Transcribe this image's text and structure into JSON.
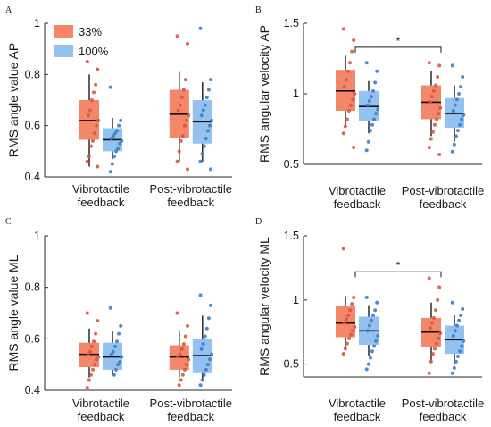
{
  "colors": {
    "c33": "#f4866a",
    "c100": "#94c2f0",
    "dot33": "#d45a3e",
    "dot100": "#3e7ec6"
  },
  "chart_data": [
    {
      "panel": "A",
      "type": "box",
      "ylabel": "RMS angle value AP",
      "ylim": [
        0.4,
        1.0
      ],
      "yticks": [
        "0.4",
        "0.6",
        "0.8",
        "1"
      ],
      "legend": {
        "placement": "top-left",
        "entries": [
          "33%",
          "100%"
        ]
      },
      "categories": [
        "Vibrotactile\nfeedback",
        "Post-vibrotactile\nfeedback"
      ],
      "significance": null,
      "series": [
        {
          "name": "33%",
          "boxes": [
            {
              "min": 0.44,
              "q1": 0.545,
              "median": 0.62,
              "q3": 0.7,
              "max": 0.8,
              "points": [
                0.85,
                0.82,
                0.76,
                0.73,
                0.7,
                0.66,
                0.64,
                0.62,
                0.6,
                0.57,
                0.54,
                0.52,
                0.48,
                0.46,
                0.44
              ]
            },
            {
              "min": 0.46,
              "q1": 0.55,
              "median": 0.645,
              "q3": 0.74,
              "max": 0.81,
              "points": [
                0.95,
                0.92,
                0.78,
                0.74,
                0.71,
                0.68,
                0.66,
                0.64,
                0.62,
                0.6,
                0.56,
                0.54,
                0.5,
                0.46,
                0.43
              ]
            }
          ]
        },
        {
          "name": "100%",
          "boxes": [
            {
              "min": 0.47,
              "q1": 0.5,
              "median": 0.545,
              "q3": 0.59,
              "max": 0.63,
              "points": [
                0.75,
                0.62,
                0.6,
                0.58,
                0.57,
                0.56,
                0.55,
                0.54,
                0.53,
                0.51,
                0.5,
                0.48,
                0.45,
                0.42
              ]
            },
            {
              "min": 0.46,
              "q1": 0.53,
              "median": 0.615,
              "q3": 0.7,
              "max": 0.77,
              "points": [
                0.98,
                0.78,
                0.74,
                0.71,
                0.68,
                0.66,
                0.64,
                0.62,
                0.6,
                0.58,
                0.55,
                0.52,
                0.49,
                0.46,
                0.43
              ]
            }
          ]
        }
      ]
    },
    {
      "panel": "B",
      "type": "box",
      "ylabel": "RMS angular velocity AP",
      "ylim": [
        0.5,
        1.5
      ],
      "yticks": [
        "0.5",
        "1",
        "1.5"
      ],
      "legend": null,
      "categories": [
        "Vibrotactile\nfeedback",
        "Post-vibrotactile\nfeedback"
      ],
      "significance": {
        "label": "*",
        "from": 0,
        "to": 1,
        "y": 1.33
      },
      "series": [
        {
          "name": "33%",
          "boxes": [
            {
              "min": 0.78,
              "q1": 0.88,
              "median": 1.02,
              "q3": 1.17,
              "max": 1.27,
              "points": [
                1.46,
                1.38,
                1.3,
                1.22,
                1.16,
                1.1,
                1.05,
                1.0,
                0.96,
                0.92,
                0.88,
                0.82,
                0.77,
                0.72,
                0.62
              ]
            },
            {
              "min": 0.7,
              "q1": 0.82,
              "median": 0.94,
              "q3": 1.06,
              "max": 1.16,
              "points": [
                1.22,
                1.2,
                1.12,
                1.06,
                1.02,
                0.98,
                0.94,
                0.9,
                0.86,
                0.82,
                0.78,
                0.73,
                0.68,
                0.62,
                0.57
              ]
            }
          ]
        },
        {
          "name": "100%",
          "boxes": [
            {
              "min": 0.72,
              "q1": 0.81,
              "median": 0.91,
              "q3": 1.02,
              "max": 1.09,
              "points": [
                1.22,
                1.16,
                1.08,
                1.02,
                0.98,
                0.95,
                0.92,
                0.89,
                0.86,
                0.82,
                0.78,
                0.74,
                0.66,
                0.6
              ]
            },
            {
              "min": 0.66,
              "q1": 0.76,
              "median": 0.86,
              "q3": 0.97,
              "max": 1.06,
              "points": [
                1.2,
                1.12,
                1.05,
                1.0,
                0.96,
                0.92,
                0.88,
                0.85,
                0.82,
                0.78,
                0.74,
                0.7,
                0.64,
                0.59
              ]
            }
          ]
        }
      ]
    },
    {
      "panel": "C",
      "type": "box",
      "ylabel": "RMS angle value ML",
      "ylim": [
        0.4,
        1.0
      ],
      "yticks": [
        "0.4",
        "0.6",
        "0.8",
        "1"
      ],
      "legend": null,
      "categories": [
        "Vibrotactile\nfeedback",
        "Post-vibrotactile\nfeedback"
      ],
      "significance": null,
      "series": [
        {
          "name": "33%",
          "boxes": [
            {
              "min": 0.45,
              "q1": 0.49,
              "median": 0.54,
              "q3": 0.585,
              "max": 0.64,
              "points": [
                0.7,
                0.67,
                0.62,
                0.59,
                0.57,
                0.55,
                0.54,
                0.53,
                0.52,
                0.5,
                0.48,
                0.46,
                0.44,
                0.41
              ]
            },
            {
              "min": 0.45,
              "q1": 0.48,
              "median": 0.53,
              "q3": 0.575,
              "max": 0.63,
              "points": [
                0.7,
                0.65,
                0.61,
                0.58,
                0.56,
                0.54,
                0.53,
                0.52,
                0.5,
                0.48,
                0.46,
                0.44,
                0.42
              ]
            }
          ]
        },
        {
          "name": "100%",
          "boxes": [
            {
              "min": 0.46,
              "q1": 0.48,
              "median": 0.53,
              "q3": 0.585,
              "max": 0.63,
              "points": [
                0.72,
                0.65,
                0.62,
                0.59,
                0.57,
                0.55,
                0.54,
                0.53,
                0.51,
                0.5,
                0.48,
                0.46
              ]
            },
            {
              "min": 0.44,
              "q1": 0.47,
              "median": 0.535,
              "q3": 0.6,
              "max": 0.69,
              "points": [
                0.77,
                0.73,
                0.68,
                0.64,
                0.61,
                0.58,
                0.56,
                0.54,
                0.52,
                0.5,
                0.48,
                0.46,
                0.44,
                0.42
              ]
            }
          ]
        }
      ]
    },
    {
      "panel": "D",
      "type": "box",
      "ylabel": "RMS angular velocity ML",
      "ylim": [
        0.4,
        1.5
      ],
      "yticks": [
        "0.5",
        "1",
        "1.5"
      ],
      "legend": null,
      "categories": [
        "Vibrotactile\nfeedback",
        "Post-vibrotactile\nfeedback"
      ],
      "significance": {
        "label": "*",
        "from": 0,
        "to": 1,
        "y": 1.22
      },
      "series": [
        {
          "name": "33%",
          "boxes": [
            {
              "min": 0.62,
              "q1": 0.71,
              "median": 0.82,
              "q3": 0.95,
              "max": 1.03,
              "points": [
                1.4,
                1.02,
                0.97,
                0.92,
                0.88,
                0.85,
                0.82,
                0.79,
                0.76,
                0.73,
                0.7,
                0.66,
                0.62,
                0.58
              ]
            },
            {
              "min": 0.52,
              "q1": 0.63,
              "median": 0.75,
              "q3": 0.86,
              "max": 0.98,
              "points": [
                1.17,
                1.1,
                1.0,
                0.92,
                0.86,
                0.82,
                0.78,
                0.74,
                0.7,
                0.66,
                0.62,
                0.58,
                0.52,
                0.43
              ]
            }
          ]
        },
        {
          "name": "100%",
          "boxes": [
            {
              "min": 0.56,
              "q1": 0.65,
              "median": 0.76,
              "q3": 0.87,
              "max": 0.96,
              "points": [
                1.02,
                0.98,
                0.92,
                0.88,
                0.84,
                0.8,
                0.76,
                0.72,
                0.68,
                0.64,
                0.6,
                0.55,
                0.5,
                0.46
              ]
            },
            {
              "min": 0.5,
              "q1": 0.58,
              "median": 0.69,
              "q3": 0.8,
              "max": 0.88,
              "points": [
                0.98,
                0.93,
                0.88,
                0.84,
                0.8,
                0.76,
                0.72,
                0.68,
                0.64,
                0.6,
                0.56,
                0.52,
                0.47,
                0.43
              ]
            }
          ]
        }
      ]
    }
  ]
}
